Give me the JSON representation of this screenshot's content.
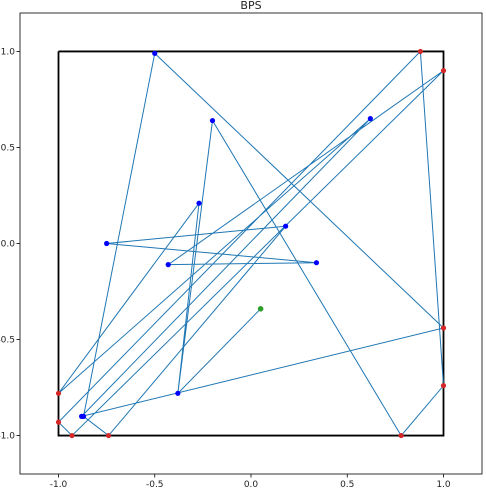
{
  "chart_data": {
    "type": "line",
    "title": "BPS",
    "xlabel": "",
    "ylabel": "",
    "xlim": [
      -1.2,
      1.2
    ],
    "ylim": [
      -1.2,
      1.2
    ],
    "xticks": [
      -1.0,
      -0.5,
      0.0,
      0.5,
      1.0
    ],
    "xtick_labels": [
      "-1.0",
      "-0.5",
      "0.0",
      "0.5",
      "1.0"
    ],
    "yticks": [
      1.0,
      0.5,
      0.0,
      -0.5,
      -1.0
    ],
    "ytick_labels": [
      "1.0",
      "0.5",
      "0.0",
      "-0.5",
      "-1.0"
    ],
    "grid": false,
    "legend": "none",
    "boundary_square": {
      "x": [
        -1,
        1,
        1,
        -1,
        -1
      ],
      "y": [
        1,
        1,
        -1,
        -1,
        1
      ]
    },
    "path": {
      "x": [
        0.05,
        -0.38,
        -0.2,
        0.78,
        1.0,
        0.88,
        -1.0,
        -0.93,
        1.0,
        -0.43,
        0.34,
        -0.75,
        0.18,
        -0.74,
        -0.87,
        -0.5,
        1.0,
        -0.88,
        0.62,
        -1.0,
        -0.27,
        -0.38,
        0.05
      ],
      "y": [
        -0.34,
        -0.78,
        0.64,
        -1.0,
        -0.74,
        1.0,
        -0.93,
        -1.0,
        0.9,
        -0.11,
        -0.1,
        0.0,
        0.09,
        -1.0,
        -0.9,
        0.99,
        -0.44,
        -0.9,
        0.65,
        -0.78,
        0.21,
        -0.78,
        -0.34
      ]
    },
    "interior_points": {
      "x": [
        -0.38,
        -0.2,
        -0.43,
        0.34,
        -0.75,
        0.18,
        -0.87,
        -0.5,
        -0.88,
        0.62,
        -0.27
      ],
      "y": [
        -0.78,
        0.64,
        -0.11,
        -0.1,
        0.0,
        0.09,
        -0.9,
        0.99,
        -0.9,
        0.65,
        0.21
      ]
    },
    "boundary_points": {
      "x": [
        0.78,
        1.0,
        0.88,
        -1.0,
        -0.93,
        1.0,
        -0.74,
        1.0,
        -1.0
      ],
      "y": [
        -1.0,
        -0.74,
        1.0,
        -0.93,
        -1.0,
        0.9,
        -1.0,
        -0.44,
        -0.78
      ]
    },
    "start_point": {
      "x": 0.05,
      "y": -0.34
    },
    "colors": {
      "path": "#1f77b4",
      "interior_points": "#0000ff",
      "boundary_points": "#d62728",
      "start_point": "#2ca02c",
      "boundary_square": "#000000"
    }
  }
}
